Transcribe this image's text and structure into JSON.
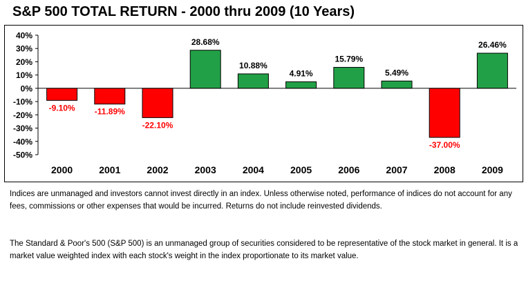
{
  "title": "S&P 500 TOTAL RETURN - 2000 thru 2009 (10 Years)",
  "colors": {
    "positive": "#22a047",
    "negative": "#ff0000",
    "positive_label": "#000000",
    "negative_label": "#ff0000"
  },
  "chart_data": {
    "type": "bar",
    "categories": [
      "2000",
      "2001",
      "2002",
      "2003",
      "2004",
      "2005",
      "2006",
      "2007",
      "2008",
      "2009"
    ],
    "values": [
      -9.1,
      -11.89,
      -22.1,
      28.68,
      10.88,
      4.91,
      15.79,
      5.49,
      -37.0,
      26.46
    ],
    "data_labels": [
      "-9.10%",
      "-11.89%",
      "-22.10%",
      "28.68%",
      "10.88%",
      "4.91%",
      "15.79%",
      "5.49%",
      "-37.00%",
      "26.46%"
    ],
    "y_ticks": [
      "40%",
      "30%",
      "20%",
      "10%",
      "0%",
      "-10%",
      "-20%",
      "-30%",
      "-40%",
      "-50%"
    ],
    "ylim": [
      -50,
      40
    ],
    "grid": false,
    "legend": "none"
  },
  "notes": {
    "disclaimer": "Indices are unmanaged and investors cannot invest directly in an index. Unless otherwise noted, performance of indices do not account for any fees, commissions or other expenses that would be incurred.  Returns do not include reinvested dividends.",
    "definition": "The Standard & Poor's 500 (S&P 500) is an unmanaged group of securities considered to be representative of the stock market in general.  It is a market value weighted index with each stock's weight in the index proportionate to its market value."
  }
}
